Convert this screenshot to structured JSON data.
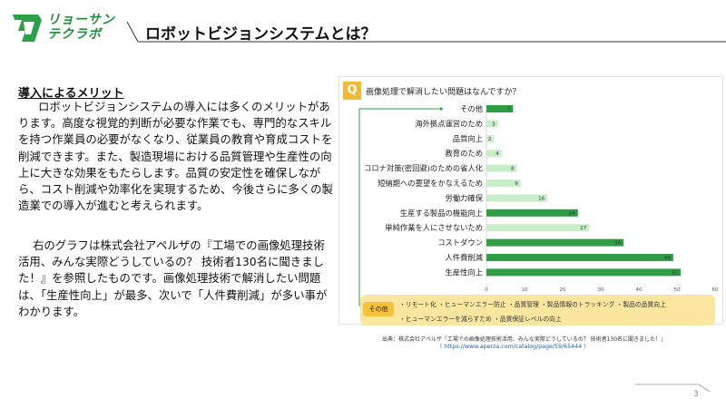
{
  "logo": {
    "line1": "リョーサン",
    "line2": "テクラボ"
  },
  "slide_title": "ロボットビジョンシステムとは？",
  "merit": {
    "heading": "導入によるメリット",
    "para1": "ロボットビジョンシステムの導入には多くのメリットがあります。高度な視覚的判断が必要な作業でも、専門的なスキルを持つ作業員の必要がなくなり、従業員の教育や育成コストを削減できます。また、製造現場における品質管理や生産性の向上に大きな効果をもたらします。品質の安定性を確保しながら、コスト削減や効率化を実現するため、今後さらに多くの製造業での導入が進むと考えられます。",
    "para2": "右のグラフは株式会社アペルザの『工場での画像処理技術活用、みんな実際どうしているの？ 技術者130名に聞きました！』を参照したものです。画像処理技術で解消したい問題は、「生産性向上」が最多、次いで「人件費削減」が多い事がわかります。"
  },
  "chart_header": {
    "badge": "Q",
    "question": "画像処理で解消したい問題はなんですか？"
  },
  "chart_data": {
    "type": "bar",
    "orientation": "horizontal",
    "categories": [
      "その他",
      "海外拠点運営のため",
      "品質向上",
      "教育のため",
      "コロナ対策(密回避)のための省人化",
      "短納期への要望をかなえるため",
      "労働力確保",
      "生産する製品の機能向上",
      "単純作業を人にさせないため",
      "コストダウン",
      "人件費削減",
      "生産性向上"
    ],
    "values": [
      7,
      3,
      2,
      4,
      8,
      9,
      16,
      24,
      27,
      36,
      49,
      51
    ],
    "value_labels": [
      "7",
      "3",
      "2",
      "4",
      "8",
      "9",
      "16",
      "24",
      "27",
      "36",
      "49",
      "51"
    ],
    "xlim": [
      0,
      60
    ],
    "xticks": [
      "0",
      "10",
      "20",
      "30",
      "40",
      "50",
      "60"
    ],
    "highlighted_categories": [
      "その他",
      "生産する製品の機能向上",
      "コストダウン",
      "人件費削減",
      "生産性向上"
    ],
    "highlight_color": "#2e9d45",
    "normal_color": "#c8edc8",
    "grid": false,
    "title": "",
    "xlabel": "",
    "ylabel": ""
  },
  "other_box": {
    "tag": "その他",
    "line1": "・リモート化 ・ヒューマンエラー防止 ・品質管理 ・製品情報のトラッキング ・製品の品質向上",
    "line2": "・ヒューマンエラーを減らすため ・品質保証レベルの向上"
  },
  "source": {
    "line1": "出典：株式会社アペルザ「工場での画像処理技術活用、みんな実際どうしているの？ 技術者130名に聞きました！」",
    "line2": "（ https://www.aperza.com/catalog/page/59/65444 ）"
  },
  "page_number": "3",
  "colors": {
    "brand_green": "#1f8f3a",
    "accent_yellow": "#f1b934"
  }
}
